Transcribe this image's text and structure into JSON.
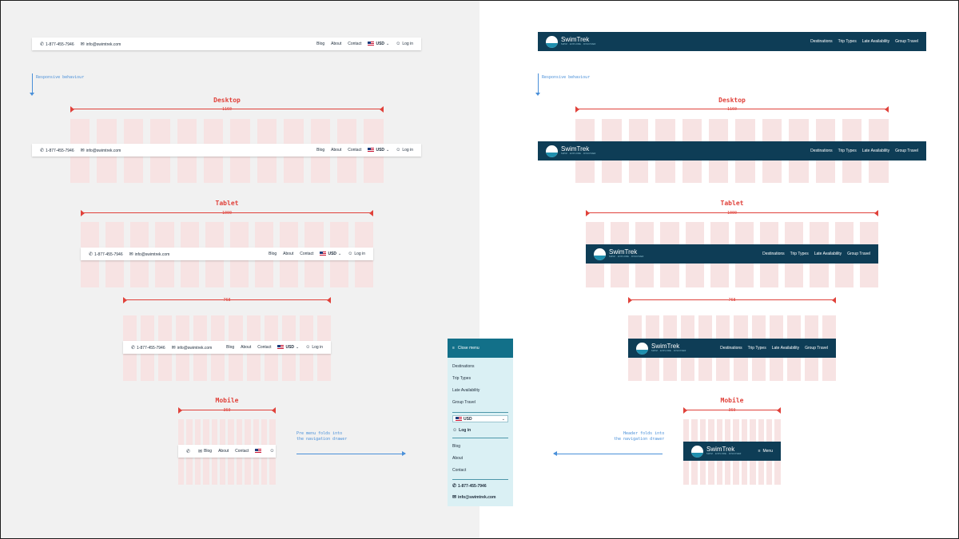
{
  "responsive_note": "Responsive behaviour",
  "sections": {
    "desktop": "Desktop",
    "tablet": "Tablet",
    "mobile": "Mobile"
  },
  "widths": {
    "desktop": "1160",
    "tablet": "1000",
    "tablet_small": "768",
    "mobile": "360"
  },
  "utility_bar": {
    "phone": "1-877-455-7946",
    "email": "info@swimtrek.com",
    "links": [
      "Blog",
      "About",
      "Contact"
    ],
    "currency": "USD",
    "login": "Log in"
  },
  "brand_bar": {
    "logo_name": "SwimTrek",
    "logo_tagline": "SWIM · EXPLORE · DISCOVER",
    "nav": [
      "Destinations",
      "Trip Types",
      "Late Availability",
      "Group Travel"
    ],
    "menu_label": "Menu"
  },
  "drawer": {
    "close_label": "Close menu",
    "nav": [
      "Destinations",
      "Trip Types",
      "Late Availability",
      "Group Travel"
    ],
    "currency": "USD",
    "login": "Log in",
    "links": [
      "Blog",
      "About",
      "Contact"
    ],
    "phone": "1-877-455-7946",
    "email": "info@swimtrek.com"
  },
  "notes": {
    "pre_menu": [
      "Pre menu folds into",
      "the navigation drawer"
    ],
    "header": [
      "Header folds into",
      "the navigation drawer"
    ]
  },
  "colors": {
    "accent_red": "#e0413a",
    "accent_blue": "#4a90d9",
    "brand_dark": "#0e3d56",
    "drawer_header": "#127089",
    "drawer_bg": "#daf0f4",
    "grid_col": "#f7e3e3"
  }
}
